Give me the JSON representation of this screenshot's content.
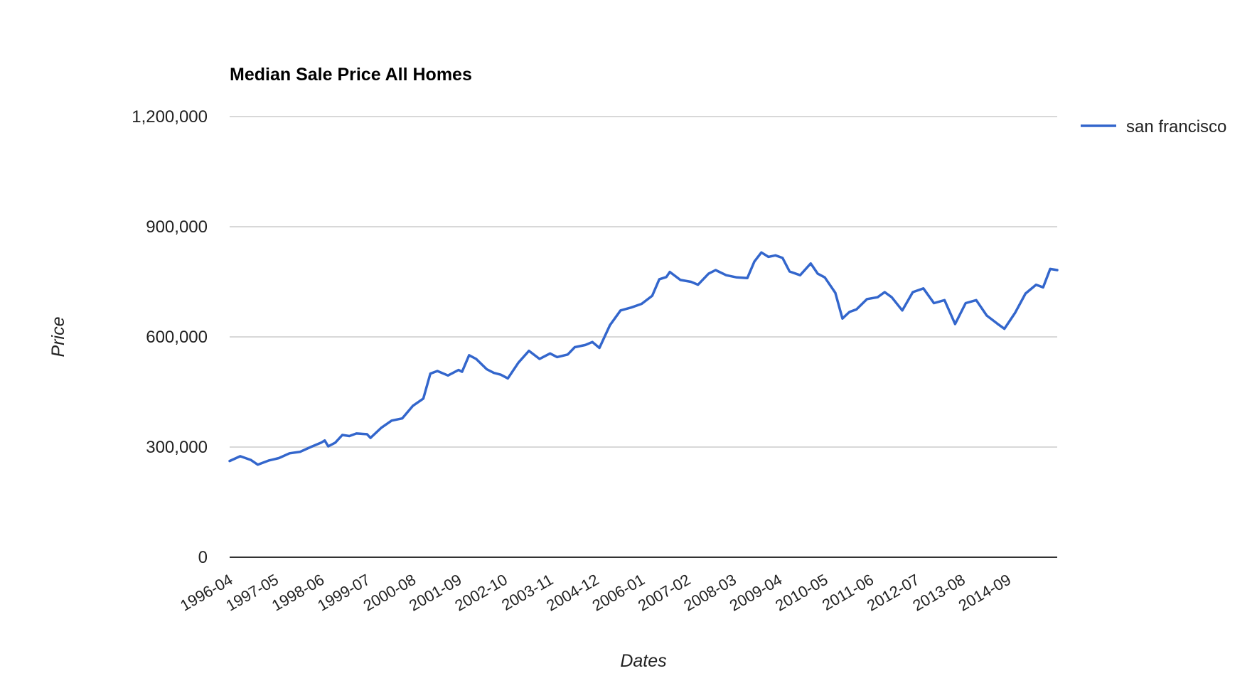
{
  "chart_data": {
    "type": "line",
    "title": "Median Sale Price All Homes",
    "xlabel": "Dates",
    "ylabel": "Price",
    "ylim": [
      0,
      1200000
    ],
    "yticks": [
      0,
      300000,
      600000,
      900000,
      1200000
    ],
    "ytick_labels": [
      "0",
      "300,000",
      "600,000",
      "900,000",
      "1,200,000"
    ],
    "xtick_labels": [
      "1996-04",
      "1997-05",
      "1998-06",
      "1999-07",
      "2000-08",
      "2001-09",
      "2002-10",
      "2003-11",
      "2004-12",
      "2006-01",
      "2007-02",
      "2008-03",
      "2009-04",
      "2010-05",
      "2011-06",
      "2012-07",
      "2013-08",
      "2014-09"
    ],
    "x_start": "1996-04",
    "x_end": "2015-11",
    "grid": true,
    "legend_position": "right",
    "series": [
      {
        "name": "san francisco",
        "color": "#3366cc",
        "points": [
          [
            "1996-04",
            262000
          ],
          [
            "1996-07",
            275000
          ],
          [
            "1996-10",
            265000
          ],
          [
            "1996-12",
            252000
          ],
          [
            "1997-03",
            263000
          ],
          [
            "1997-06",
            270000
          ],
          [
            "1997-09",
            283000
          ],
          [
            "1997-12",
            287000
          ],
          [
            "1998-03",
            300000
          ],
          [
            "1998-06",
            312000
          ],
          [
            "1998-07",
            318000
          ],
          [
            "1998-08",
            302000
          ],
          [
            "1998-10",
            312000
          ],
          [
            "1998-12",
            333000
          ],
          [
            "1999-02",
            330000
          ],
          [
            "1999-04",
            337000
          ],
          [
            "1999-07",
            335000
          ],
          [
            "1999-08",
            325000
          ],
          [
            "1999-11",
            352000
          ],
          [
            "2000-02",
            372000
          ],
          [
            "2000-05",
            378000
          ],
          [
            "2000-08",
            412000
          ],
          [
            "2000-11",
            432000
          ],
          [
            "2001-01",
            500000
          ],
          [
            "2001-03",
            507000
          ],
          [
            "2001-06",
            495000
          ],
          [
            "2001-09",
            510000
          ],
          [
            "2001-10",
            505000
          ],
          [
            "2001-12",
            550000
          ],
          [
            "2002-02",
            540000
          ],
          [
            "2002-05",
            512000
          ],
          [
            "2002-07",
            502000
          ],
          [
            "2002-09",
            497000
          ],
          [
            "2002-11",
            487000
          ],
          [
            "2003-02",
            530000
          ],
          [
            "2003-05",
            562000
          ],
          [
            "2003-08",
            540000
          ],
          [
            "2003-11",
            555000
          ],
          [
            "2004-01",
            545000
          ],
          [
            "2004-04",
            552000
          ],
          [
            "2004-06",
            572000
          ],
          [
            "2004-09",
            578000
          ],
          [
            "2004-11",
            586000
          ],
          [
            "2005-01",
            570000
          ],
          [
            "2005-04",
            632000
          ],
          [
            "2005-07",
            672000
          ],
          [
            "2005-10",
            680000
          ],
          [
            "2006-01",
            690000
          ],
          [
            "2006-04",
            712000
          ],
          [
            "2006-06",
            757000
          ],
          [
            "2006-08",
            763000
          ],
          [
            "2006-09",
            777000
          ],
          [
            "2006-12",
            755000
          ],
          [
            "2007-03",
            750000
          ],
          [
            "2007-05",
            742000
          ],
          [
            "2007-08",
            772000
          ],
          [
            "2007-10",
            782000
          ],
          [
            "2008-01",
            768000
          ],
          [
            "2008-04",
            762000
          ],
          [
            "2008-07",
            760000
          ],
          [
            "2008-09",
            805000
          ],
          [
            "2008-11",
            830000
          ],
          [
            "2009-01",
            818000
          ],
          [
            "2009-03",
            822000
          ],
          [
            "2009-05",
            815000
          ],
          [
            "2009-07",
            778000
          ],
          [
            "2009-10",
            768000
          ],
          [
            "2010-01",
            800000
          ],
          [
            "2010-03",
            772000
          ],
          [
            "2010-05",
            762000
          ],
          [
            "2010-08",
            720000
          ],
          [
            "2010-10",
            650000
          ],
          [
            "2010-12",
            668000
          ],
          [
            "2011-02",
            675000
          ],
          [
            "2011-05",
            703000
          ],
          [
            "2011-08",
            708000
          ],
          [
            "2011-10",
            722000
          ],
          [
            "2011-12",
            708000
          ],
          [
            "2012-03",
            672000
          ],
          [
            "2012-06",
            722000
          ],
          [
            "2012-09",
            732000
          ],
          [
            "2012-12",
            692000
          ],
          [
            "2013-03",
            700000
          ],
          [
            "2013-06",
            635000
          ],
          [
            "2013-09",
            692000
          ],
          [
            "2013-12",
            700000
          ],
          [
            "2014-03",
            658000
          ],
          [
            "2014-06",
            636000
          ],
          [
            "2014-08",
            622000
          ],
          [
            "2014-11",
            665000
          ],
          [
            "2015-02",
            718000
          ],
          [
            "2015-05",
            742000
          ],
          [
            "2015-07",
            735000
          ],
          [
            "2015-09",
            785000
          ],
          [
            "2015-11",
            782000
          ]
        ]
      }
    ]
  }
}
